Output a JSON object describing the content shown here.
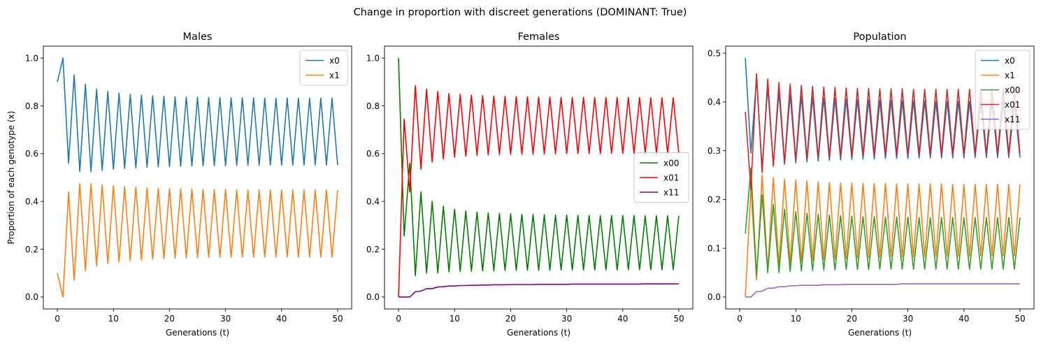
{
  "suptitle": "Change in proportion with discreet generations (DOMINANT: True)",
  "chart_data": [
    {
      "type": "line",
      "title": "Males",
      "xlabel": "Generations (t)",
      "ylabel": "Proportion of each genotype (x)",
      "xlim": [
        -2.5,
        52.5
      ],
      "ylim": [
        -0.05,
        1.05
      ],
      "xticks": [
        0,
        10,
        20,
        30,
        40,
        50
      ],
      "yticks": [
        0.0,
        0.2,
        0.4,
        0.6,
        0.8,
        1.0
      ],
      "grid": false,
      "legend_position": "top-right",
      "series": [
        {
          "name": "x0",
          "color": "#1f77b4",
          "x_start": 0,
          "values": [
            0.9,
            1.0,
            0.56,
            0.93,
            0.525,
            0.89,
            0.525,
            0.87,
            0.53,
            0.86,
            0.535,
            0.853,
            0.538,
            0.848,
            0.54,
            0.845,
            0.543,
            0.842,
            0.545,
            0.84,
            0.546,
            0.838,
            0.547,
            0.837,
            0.548,
            0.836,
            0.549,
            0.835,
            0.55,
            0.835,
            0.55,
            0.834,
            0.551,
            0.834,
            0.551,
            0.834,
            0.551,
            0.833,
            0.552,
            0.833,
            0.552,
            0.833,
            0.552,
            0.833,
            0.552,
            0.833,
            0.552,
            0.833,
            0.552,
            0.833,
            0.552
          ]
        },
        {
          "name": "x1",
          "color": "#ff7f0e",
          "x_start": 0,
          "values": [
            0.1,
            0.0,
            0.44,
            0.07,
            0.475,
            0.11,
            0.475,
            0.13,
            0.47,
            0.14,
            0.465,
            0.147,
            0.462,
            0.152,
            0.46,
            0.155,
            0.457,
            0.158,
            0.455,
            0.16,
            0.454,
            0.162,
            0.453,
            0.163,
            0.452,
            0.164,
            0.451,
            0.165,
            0.45,
            0.165,
            0.45,
            0.166,
            0.449,
            0.166,
            0.449,
            0.166,
            0.449,
            0.167,
            0.448,
            0.167,
            0.448,
            0.167,
            0.448,
            0.167,
            0.448,
            0.167,
            0.448,
            0.167,
            0.448,
            0.167,
            0.448
          ]
        }
      ]
    },
    {
      "type": "line",
      "title": "Females",
      "xlabel": "Generations (t)",
      "ylabel": "",
      "xlim": [
        -2.5,
        52.5
      ],
      "ylim": [
        -0.05,
        1.05
      ],
      "xticks": [
        0,
        10,
        20,
        30,
        40,
        50
      ],
      "yticks": [
        0.0,
        0.2,
        0.4,
        0.6,
        0.8,
        1.0
      ],
      "grid": false,
      "legend_position": "center-right",
      "series": [
        {
          "name": "x00",
          "color": "#008000",
          "x_start": 0,
          "values": [
            1.0,
            0.255,
            0.56,
            0.09,
            0.44,
            0.1,
            0.4,
            0.1,
            0.38,
            0.105,
            0.368,
            0.107,
            0.36,
            0.108,
            0.355,
            0.109,
            0.352,
            0.11,
            0.35,
            0.111,
            0.348,
            0.111,
            0.346,
            0.112,
            0.345,
            0.112,
            0.344,
            0.112,
            0.343,
            0.113,
            0.343,
            0.113,
            0.342,
            0.113,
            0.342,
            0.113,
            0.341,
            0.113,
            0.341,
            0.113,
            0.341,
            0.114,
            0.341,
            0.114,
            0.34,
            0.114,
            0.34,
            0.114,
            0.34,
            0.114,
            0.34
          ]
        },
        {
          "name": "x01",
          "color": "#ff0000",
          "x_start": 0,
          "values": [
            0.0,
            0.745,
            0.44,
            0.885,
            0.535,
            0.87,
            0.565,
            0.86,
            0.578,
            0.852,
            0.585,
            0.848,
            0.59,
            0.845,
            0.593,
            0.843,
            0.595,
            0.841,
            0.596,
            0.84,
            0.597,
            0.839,
            0.598,
            0.838,
            0.598,
            0.837,
            0.599,
            0.837,
            0.599,
            0.836,
            0.6,
            0.836,
            0.6,
            0.836,
            0.6,
            0.835,
            0.6,
            0.835,
            0.601,
            0.835,
            0.601,
            0.835,
            0.601,
            0.835,
            0.601,
            0.834,
            0.601,
            0.834,
            0.601,
            0.834,
            0.601
          ]
        },
        {
          "name": "x11",
          "color": "#800080",
          "x_start": 0,
          "values": [
            0.0,
            0.0,
            0.0,
            0.022,
            0.025,
            0.035,
            0.035,
            0.042,
            0.043,
            0.046,
            0.046,
            0.048,
            0.048,
            0.049,
            0.049,
            0.05,
            0.05,
            0.051,
            0.051,
            0.051,
            0.052,
            0.052,
            0.052,
            0.052,
            0.052,
            0.053,
            0.053,
            0.053,
            0.053,
            0.053,
            0.053,
            0.054,
            0.054,
            0.054,
            0.054,
            0.054,
            0.054,
            0.054,
            0.054,
            0.054,
            0.054,
            0.054,
            0.054,
            0.054,
            0.055,
            0.055,
            0.055,
            0.055,
            0.055,
            0.055,
            0.055
          ]
        }
      ]
    },
    {
      "type": "line",
      "title": "Population",
      "xlabel": "Generations (t)",
      "ylabel": "",
      "xlim": [
        -2.5,
        52.5
      ],
      "ylim": [
        -0.0245,
        0.5145
      ],
      "xticks": [
        0,
        10,
        20,
        30,
        40,
        50
      ],
      "yticks": [
        0.0,
        0.1,
        0.2,
        0.3,
        0.4,
        0.5
      ],
      "grid": false,
      "legend_position": "top-right",
      "series": [
        {
          "name": "x0",
          "color": "#1f77b4",
          "x_start": 1,
          "values": [
            0.49,
            0.295,
            0.45,
            0.265,
            0.43,
            0.27,
            0.42,
            0.272,
            0.415,
            0.275,
            0.412,
            0.277,
            0.41,
            0.279,
            0.408,
            0.28,
            0.407,
            0.281,
            0.406,
            0.282,
            0.405,
            0.283,
            0.404,
            0.283,
            0.403,
            0.284,
            0.403,
            0.284,
            0.402,
            0.284,
            0.402,
            0.285,
            0.402,
            0.285,
            0.401,
            0.285,
            0.401,
            0.285,
            0.401,
            0.285,
            0.401,
            0.286,
            0.401,
            0.286,
            0.4,
            0.286,
            0.4,
            0.286,
            0.4,
            0.286
          ]
        },
        {
          "name": "x1",
          "color": "#ff7f0e",
          "x_start": 1,
          "values": [
            0.0,
            0.225,
            0.035,
            0.25,
            0.055,
            0.245,
            0.065,
            0.242,
            0.07,
            0.24,
            0.073,
            0.238,
            0.075,
            0.236,
            0.077,
            0.235,
            0.078,
            0.234,
            0.079,
            0.234,
            0.08,
            0.233,
            0.081,
            0.233,
            0.081,
            0.233,
            0.082,
            0.232,
            0.082,
            0.232,
            0.082,
            0.232,
            0.083,
            0.232,
            0.083,
            0.232,
            0.083,
            0.231,
            0.083,
            0.231,
            0.083,
            0.231,
            0.084,
            0.231,
            0.084,
            0.231,
            0.084,
            0.231,
            0.084,
            0.231
          ]
        },
        {
          "name": "x00",
          "color": "#2ca02c",
          "x_start": 1,
          "values": [
            0.13,
            0.265,
            0.045,
            0.21,
            0.05,
            0.19,
            0.05,
            0.18,
            0.052,
            0.175,
            0.053,
            0.172,
            0.054,
            0.17,
            0.055,
            0.168,
            0.055,
            0.167,
            0.056,
            0.166,
            0.056,
            0.165,
            0.056,
            0.165,
            0.057,
            0.164,
            0.057,
            0.164,
            0.057,
            0.164,
            0.057,
            0.163,
            0.057,
            0.163,
            0.057,
            0.163,
            0.057,
            0.163,
            0.057,
            0.163,
            0.057,
            0.163,
            0.057,
            0.163,
            0.057,
            0.163,
            0.057,
            0.163,
            0.057,
            0.163
          ]
        },
        {
          "name": "x01",
          "color": "#d62728",
          "x_start": 1,
          "values": [
            0.38,
            0.22,
            0.458,
            0.255,
            0.447,
            0.268,
            0.44,
            0.275,
            0.437,
            0.28,
            0.434,
            0.283,
            0.432,
            0.285,
            0.431,
            0.287,
            0.43,
            0.288,
            0.429,
            0.289,
            0.428,
            0.29,
            0.428,
            0.29,
            0.427,
            0.291,
            0.427,
            0.291,
            0.427,
            0.292,
            0.426,
            0.292,
            0.426,
            0.292,
            0.426,
            0.292,
            0.426,
            0.293,
            0.426,
            0.293,
            0.426,
            0.293,
            0.425,
            0.293,
            0.425,
            0.293,
            0.425,
            0.293,
            0.425,
            0.293
          ]
        },
        {
          "name": "x11",
          "color": "#9467bd",
          "x_start": 1,
          "values": [
            0.0,
            0.0,
            0.011,
            0.012,
            0.018,
            0.018,
            0.021,
            0.021,
            0.023,
            0.023,
            0.024,
            0.024,
            0.024,
            0.024,
            0.025,
            0.025,
            0.025,
            0.025,
            0.026,
            0.026,
            0.026,
            0.026,
            0.026,
            0.026,
            0.026,
            0.026,
            0.026,
            0.026,
            0.027,
            0.027,
            0.027,
            0.027,
            0.027,
            0.027,
            0.027,
            0.027,
            0.027,
            0.027,
            0.027,
            0.027,
            0.027,
            0.027,
            0.027,
            0.027,
            0.027,
            0.027,
            0.027,
            0.027,
            0.027,
            0.027
          ]
        }
      ]
    }
  ]
}
